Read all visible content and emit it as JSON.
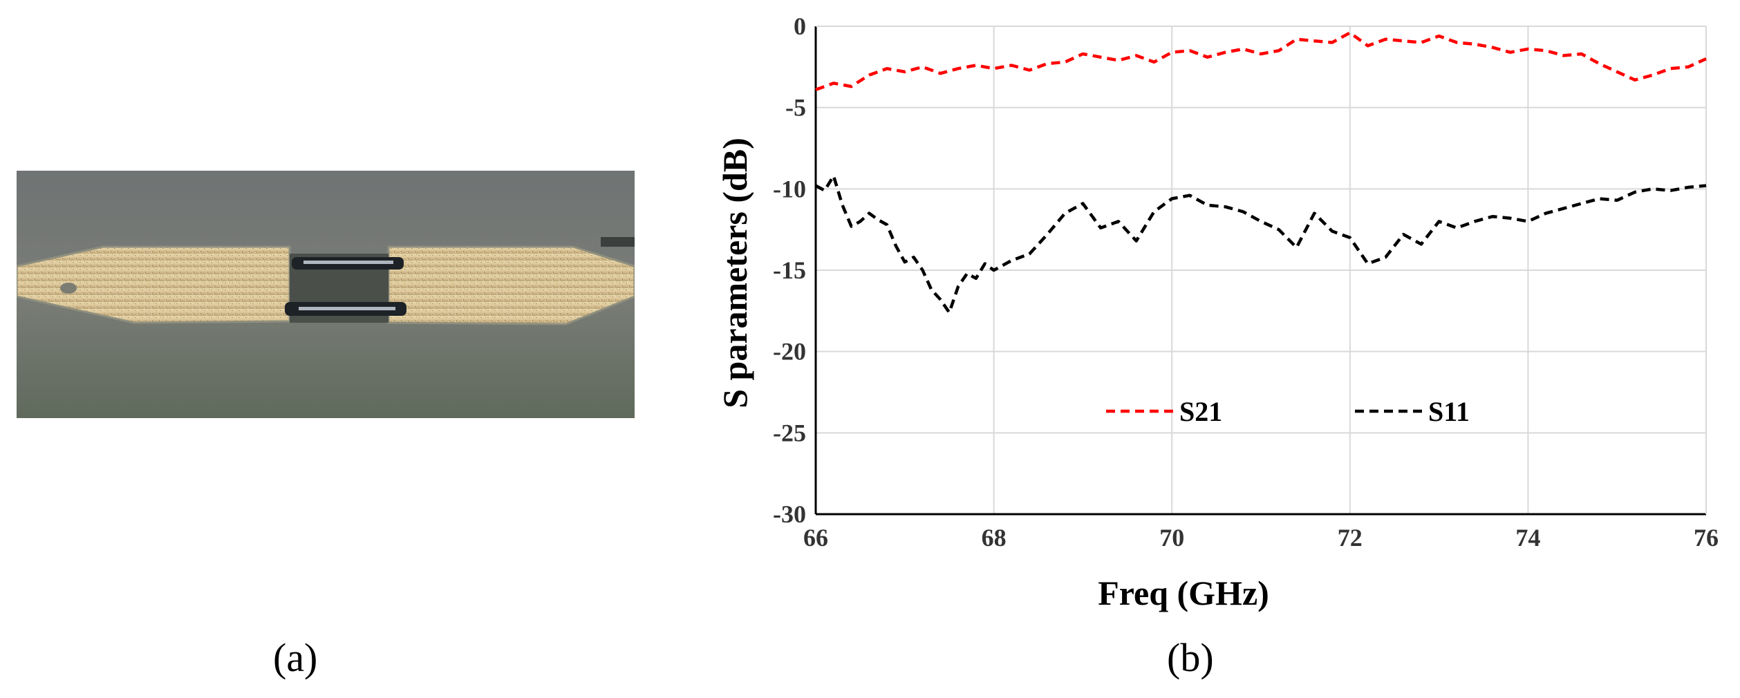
{
  "figure": {
    "panel_a_label": "(a)",
    "panel_b_label": "(b)",
    "photo_subject": "microscope photo of a chip with bond wires"
  },
  "chart_data": {
    "type": "line",
    "title": "",
    "xlabel": "Freq (GHz)",
    "ylabel": "S parameters (dB)",
    "xlim": [
      66,
      76
    ],
    "ylim": [
      -30,
      0
    ],
    "xticks": [
      66,
      68,
      70,
      72,
      74,
      76
    ],
    "yticks": [
      0,
      -5,
      -10,
      -15,
      -20,
      -25,
      -30
    ],
    "grid": true,
    "legend_position": "center",
    "series": [
      {
        "name": "S21",
        "color": "#ff0000",
        "style": "dashed",
        "x": [
          66,
          66.2,
          66.4,
          66.6,
          66.8,
          67,
          67.2,
          67.4,
          67.6,
          67.8,
          68,
          68.2,
          68.4,
          68.6,
          68.8,
          69,
          69.2,
          69.4,
          69.6,
          69.8,
          70,
          70.2,
          70.4,
          70.6,
          70.8,
          71,
          71.2,
          71.4,
          71.6,
          71.8,
          72,
          72.2,
          72.4,
          72.6,
          72.8,
          73,
          73.2,
          73.4,
          73.6,
          73.8,
          74,
          74.2,
          74.4,
          74.6,
          74.8,
          75,
          75.2,
          75.4,
          75.6,
          75.8,
          76
        ],
        "y": [
          -3.9,
          -3.5,
          -3.7,
          -3.0,
          -2.6,
          -2.8,
          -2.5,
          -2.9,
          -2.6,
          -2.4,
          -2.6,
          -2.4,
          -2.7,
          -2.3,
          -2.2,
          -1.7,
          -1.9,
          -2.1,
          -1.8,
          -2.2,
          -1.6,
          -1.5,
          -1.9,
          -1.6,
          -1.4,
          -1.7,
          -1.5,
          -0.8,
          -0.9,
          -1.0,
          -0.4,
          -1.2,
          -0.8,
          -0.9,
          -1.0,
          -0.6,
          -1.0,
          -1.1,
          -1.3,
          -1.6,
          -1.4,
          -1.5,
          -1.8,
          -1.7,
          -2.3,
          -2.8,
          -3.3,
          -3.0,
          -2.6,
          -2.5,
          -2.0
        ]
      },
      {
        "name": "S11",
        "color": "#000000",
        "style": "dashed",
        "x": [
          66,
          66.1,
          66.2,
          66.3,
          66.4,
          66.5,
          66.6,
          66.7,
          66.8,
          66.9,
          67,
          67.1,
          67.2,
          67.3,
          67.4,
          67.5,
          67.6,
          67.7,
          67.8,
          67.9,
          68,
          68.2,
          68.4,
          68.6,
          68.8,
          69,
          69.2,
          69.4,
          69.6,
          69.8,
          70,
          70.2,
          70.4,
          70.6,
          70.8,
          71,
          71.2,
          71.4,
          71.6,
          71.8,
          72,
          72.2,
          72.4,
          72.6,
          72.8,
          73,
          73.2,
          73.4,
          73.6,
          73.8,
          74,
          74.2,
          74.4,
          74.6,
          74.8,
          75,
          75.2,
          75.4,
          75.6,
          75.8,
          76
        ],
        "y": [
          -9.8,
          -10.1,
          -9.2,
          -11.0,
          -12.3,
          -12.0,
          -11.5,
          -11.9,
          -12.2,
          -13.5,
          -14.5,
          -14.2,
          -15.0,
          -16.2,
          -16.8,
          -17.6,
          -16.0,
          -15.2,
          -15.5,
          -14.6,
          -15.0,
          -14.4,
          -14.0,
          -12.8,
          -11.5,
          -10.9,
          -12.4,
          -12.0,
          -13.2,
          -11.4,
          -10.6,
          -10.4,
          -11.0,
          -11.1,
          -11.4,
          -12.0,
          -12.5,
          -13.6,
          -11.5,
          -12.6,
          -13.0,
          -14.6,
          -14.2,
          -12.8,
          -13.4,
          -12.0,
          -12.4,
          -12.0,
          -11.7,
          -11.8,
          -12.0,
          -11.5,
          -11.2,
          -10.9,
          -10.6,
          -10.7,
          -10.2,
          -10.0,
          -10.1,
          -9.9,
          -9.8
        ]
      }
    ]
  }
}
